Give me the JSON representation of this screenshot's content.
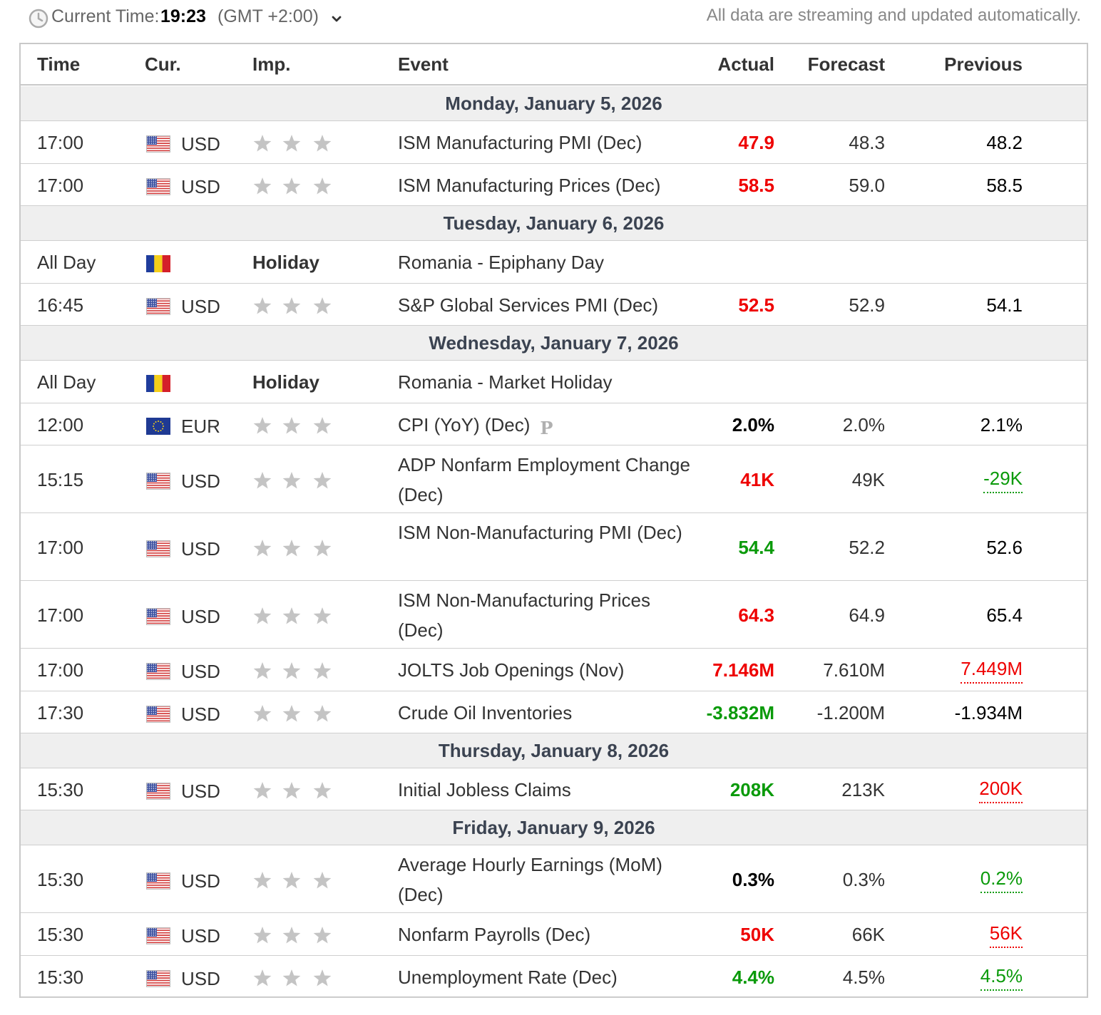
{
  "topbar": {
    "current_time_label": "Current Time:",
    "current_time": "19:23",
    "timezone": "(GMT +2:00)",
    "note": "All data are streaming and updated automatically."
  },
  "header": {
    "time": "Time",
    "cur": "Cur.",
    "imp": "Imp.",
    "event": "Event",
    "actual": "Actual",
    "forecast": "Forecast",
    "previous": "Previous"
  },
  "days": [
    "Monday, January 5, 2026",
    "Tuesday, January 6, 2026",
    "Wednesday, January 7, 2026",
    "Thursday, January 8, 2026",
    "Friday, January 9, 2026"
  ],
  "events": [
    {
      "time": "17:00",
      "flag": "us-flag-icon",
      "cur": "USD",
      "event": "ISM Manufacturing PMI (Dec)",
      "actual": "47.9",
      "actual_color": "red",
      "forecast": "48.3",
      "previous": "48.2",
      "prev_style": "black"
    },
    {
      "time": "17:00",
      "flag": "us-flag-icon",
      "cur": "USD",
      "event": "ISM Manufacturing Prices (Dec)",
      "actual": "58.5",
      "actual_color": "red",
      "forecast": "59.0",
      "previous": "58.5",
      "prev_style": "black"
    },
    {
      "time": "All Day",
      "flag": "ro-flag-icon",
      "cur": "",
      "holiday": "Holiday",
      "event": "Romania - Epiphany Day",
      "actual": "",
      "forecast": "",
      "previous": ""
    },
    {
      "time": "16:45",
      "flag": "us-flag-icon",
      "cur": "USD",
      "event": "S&P Global Services PMI (Dec)",
      "actual": "52.5",
      "actual_color": "red",
      "forecast": "52.9",
      "previous": "54.1",
      "prev_style": "black"
    },
    {
      "time": "All Day",
      "flag": "ro-flag-icon",
      "cur": "",
      "holiday": "Holiday",
      "event": "Romania - Market Holiday",
      "actual": "",
      "forecast": "",
      "previous": ""
    },
    {
      "time": "12:00",
      "flag": "eu-flag-icon",
      "cur": "EUR",
      "event": "CPI (YoY) (Dec)",
      "preliminary": "P",
      "actual": "2.0%",
      "actual_color": "black",
      "forecast": "2.0%",
      "previous": "2.1%",
      "prev_style": "black"
    },
    {
      "time": "15:15",
      "flag": "us-flag-icon",
      "cur": "USD",
      "event": "ADP Nonfarm Employment Change (Dec)",
      "actual": "41K",
      "actual_color": "red",
      "forecast": "49K",
      "previous": "-29K",
      "prev_style": "green-revised"
    },
    {
      "time": "17:00",
      "flag": "us-flag-icon",
      "cur": "USD",
      "event": "ISM Non-Manufacturing PMI (Dec)",
      "actual": "54.4",
      "actual_color": "green",
      "forecast": "52.2",
      "previous": "52.6",
      "prev_style": "black"
    },
    {
      "time": "17:00",
      "flag": "us-flag-icon",
      "cur": "USD",
      "event": "ISM Non-Manufacturing Prices (Dec)",
      "actual": "64.3",
      "actual_color": "red",
      "forecast": "64.9",
      "previous": "65.4",
      "prev_style": "black"
    },
    {
      "time": "17:00",
      "flag": "us-flag-icon",
      "cur": "USD",
      "event": "JOLTS Job Openings (Nov)",
      "actual": "7.146M",
      "actual_color": "red",
      "forecast": "7.610M",
      "previous": "7.449M",
      "prev_style": "red-revised"
    },
    {
      "time": "17:30",
      "flag": "us-flag-icon",
      "cur": "USD",
      "event": "Crude Oil Inventories",
      "actual": "-3.832M",
      "actual_color": "green",
      "forecast": "-1.200M",
      "previous": "-1.934M",
      "prev_style": "black"
    },
    {
      "time": "15:30",
      "flag": "us-flag-icon",
      "cur": "USD",
      "event": "Initial Jobless Claims",
      "actual": "208K",
      "actual_color": "green",
      "forecast": "213K",
      "previous": "200K",
      "prev_style": "red-revised"
    },
    {
      "time": "15:30",
      "flag": "us-flag-icon",
      "cur": "USD",
      "event": "Average Hourly Earnings (MoM) (Dec)",
      "actual": "0.3%",
      "actual_color": "black",
      "forecast": "0.3%",
      "previous": "0.2%",
      "prev_style": "green-revised"
    },
    {
      "time": "15:30",
      "flag": "us-flag-icon",
      "cur": "USD",
      "event": "Nonfarm Payrolls (Dec)",
      "actual": "50K",
      "actual_color": "red",
      "forecast": "66K",
      "previous": "56K",
      "prev_style": "red-revised"
    },
    {
      "time": "15:30",
      "flag": "us-flag-icon",
      "cur": "USD",
      "event": "Unemployment Rate (Dec)",
      "actual": "4.4%",
      "actual_color": "green",
      "forecast": "4.5%",
      "previous": "4.5%",
      "prev_style": "green-revised"
    }
  ],
  "icons": {
    "clock": "clock-icon",
    "chevron": "chevron-down-icon",
    "importance": "star-icon",
    "preliminary": "preliminary-icon"
  },
  "colors": {
    "negative": "#ee0000",
    "positive": "#0a9a0a",
    "day_band": "#efefef",
    "star": "#c4c4c4"
  }
}
